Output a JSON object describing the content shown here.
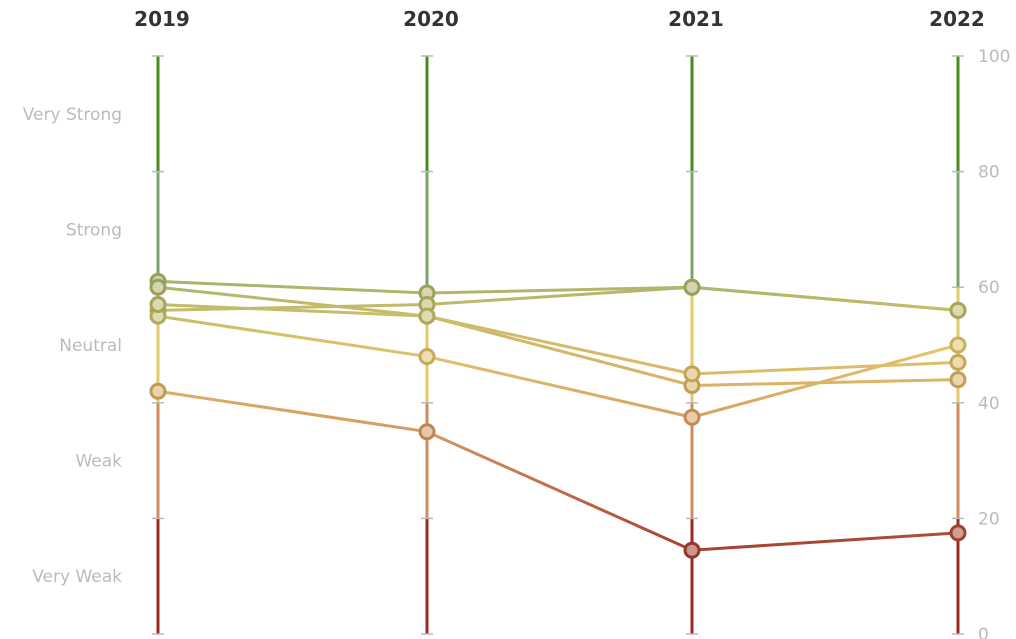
{
  "chart_data": {
    "type": "line",
    "x": [
      "2019",
      "2020",
      "2021",
      "2022"
    ],
    "ylim": [
      0,
      100
    ],
    "yticks": [
      0,
      20,
      40,
      60,
      80,
      100
    ],
    "bands": [
      {
        "label": "Very Weak",
        "from": 0,
        "to": 20,
        "color": "#9b2a22"
      },
      {
        "label": "Weak",
        "from": 20,
        "to": 40,
        "color": "#cf8b5e"
      },
      {
        "label": "Neutral",
        "from": 40,
        "to": 60,
        "color": "#e3c76a"
      },
      {
        "label": "Strong",
        "from": 60,
        "to": 80,
        "color": "#7ba36a"
      },
      {
        "label": "Very Strong",
        "from": 80,
        "to": 100,
        "color": "#4a8a1c"
      }
    ],
    "series": [
      {
        "values": [
          61,
          59,
          60,
          56
        ]
      },
      {
        "values": [
          60,
          55,
          43,
          44
        ]
      },
      {
        "values": [
          56,
          57,
          60,
          56
        ]
      },
      {
        "values": [
          55,
          48,
          37.5,
          50
        ]
      },
      {
        "values": [
          42,
          35,
          14.5,
          17.5
        ]
      },
      {
        "values": [
          57,
          55,
          45,
          47
        ]
      }
    ],
    "grid": false
  }
}
